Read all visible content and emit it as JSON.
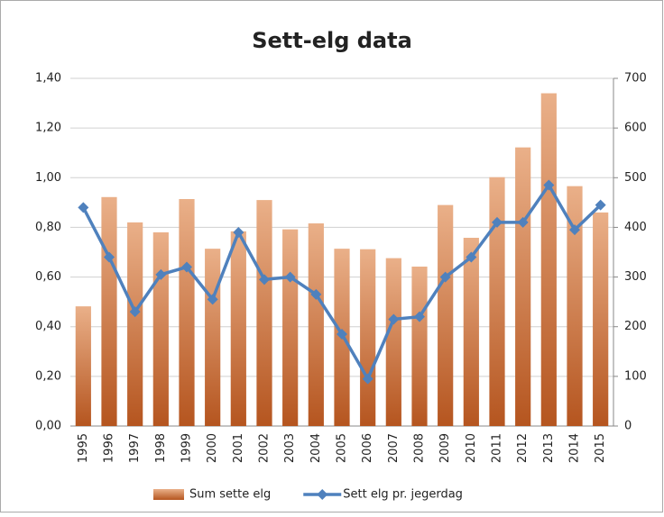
{
  "chart_data": {
    "type": "combo",
    "title": "Sett-elg data",
    "categories": [
      "1995",
      "1996",
      "1997",
      "1998",
      "1999",
      "2000",
      "2001",
      "2002",
      "2003",
      "2004",
      "2005",
      "2006",
      "2007",
      "2008",
      "2009",
      "2010",
      "2011",
      "2012",
      "2013",
      "2014",
      "2015"
    ],
    "series": [
      {
        "name": "Sum sette elg",
        "type": "bar",
        "axis": "y2",
        "color": "#c8743c",
        "values": [
          241,
          461,
          410,
          390,
          457,
          357,
          392,
          455,
          396,
          408,
          357,
          356,
          338,
          321,
          445,
          379,
          501,
          561,
          670,
          483,
          430
        ]
      },
      {
        "name": "Sett elg pr. jegerdag",
        "type": "line",
        "axis": "y",
        "color": "#4f81bd",
        "values": [
          0.88,
          0.68,
          0.46,
          0.61,
          0.64,
          0.51,
          0.78,
          0.59,
          0.6,
          0.53,
          0.37,
          0.19,
          0.43,
          0.44,
          0.6,
          0.68,
          0.82,
          0.82,
          0.97,
          0.79,
          0.89
        ]
      }
    ],
    "ylim": [
      0,
      1.4
    ],
    "yticks": [
      {
        "value": 0,
        "label": "0,00"
      },
      {
        "value": 0.2,
        "label": "0,20"
      },
      {
        "value": 0.4,
        "label": "0,40"
      },
      {
        "value": 0.6,
        "label": "0,60"
      },
      {
        "value": 0.8,
        "label": "0,80"
      },
      {
        "value": 1.0,
        "label": "1,00"
      },
      {
        "value": 1.2,
        "label": "1,20"
      },
      {
        "value": 1.4,
        "label": "1,40"
      }
    ],
    "y2lim": [
      0,
      700
    ],
    "y2ticks": [
      0,
      100,
      200,
      300,
      400,
      500,
      600,
      700
    ],
    "grid": true,
    "legend": "bottom"
  }
}
